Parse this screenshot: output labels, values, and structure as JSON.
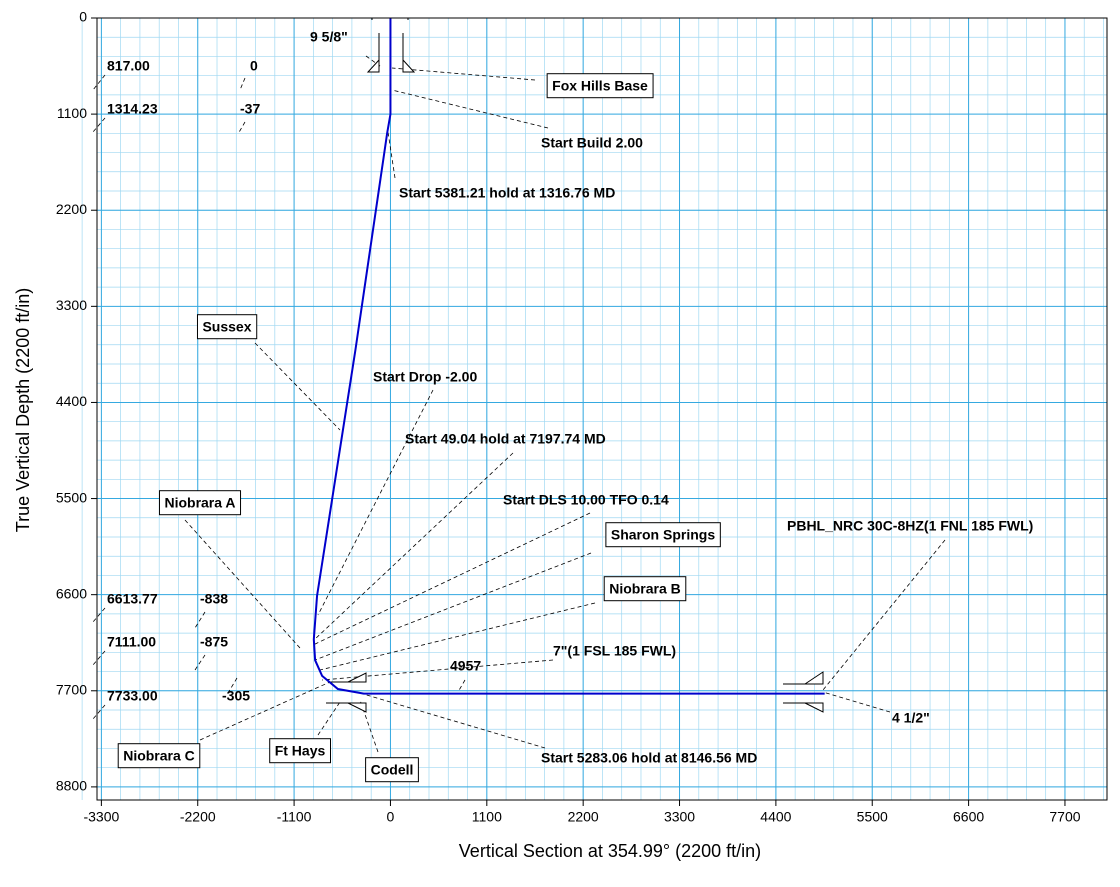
{
  "chart_data": {
    "type": "line",
    "x_label": "Vertical Section at 354.99° (2200 ft/in)",
    "y_label": "True Vertical Depth (2200 ft/in)",
    "xlim": [
      -3350,
      8180
    ],
    "ylim": [
      0,
      8950
    ],
    "y_inverted": true,
    "xticks": [
      -3300,
      -2200,
      -1100,
      0,
      1100,
      2200,
      3300,
      4400,
      5500,
      6600,
      7700
    ],
    "yticks": [
      0,
      1100,
      2200,
      3300,
      4400,
      5500,
      6600,
      7700,
      8800
    ],
    "grid": true,
    "series": [
      {
        "color": "#0000cc",
        "x": [
          0,
          0,
          0,
          -37,
          -400,
          -838,
          -875,
          -860,
          -780,
          -600,
          -305,
          4957
        ],
        "values": [
          0,
          817,
          1100,
          1314.23,
          3800,
          6613.77,
          7111,
          7350,
          7530,
          7680,
          7733,
          7733
        ]
      }
    ],
    "point_labels": [
      {
        "tvd": "817.00",
        "vs": "0"
      },
      {
        "tvd": "1314.23",
        "vs": "-37"
      },
      {
        "tvd": "6613.77",
        "vs": "-838"
      },
      {
        "tvd": "7111.00",
        "vs": "-875"
      },
      {
        "tvd": "7733.00",
        "vs": "-305"
      }
    ],
    "annotations": [
      {
        "text": "9 5/8\"",
        "boxed": false
      },
      {
        "text": "Fox Hills Base",
        "boxed": true
      },
      {
        "text": "Start Build 2.00",
        "boxed": false
      },
      {
        "text": "Start 5381.21 hold at 1316.76 MD",
        "boxed": false
      },
      {
        "text": "Sussex",
        "boxed": true
      },
      {
        "text": "Start Drop -2.00",
        "boxed": false
      },
      {
        "text": "Start 49.04 hold at 7197.74 MD",
        "boxed": false
      },
      {
        "text": "Start DLS 10.00 TFO 0.14",
        "boxed": false
      },
      {
        "text": "Sharon Springs",
        "boxed": true
      },
      {
        "text": "Niobrara A",
        "boxed": true
      },
      {
        "text": "Niobrara B",
        "boxed": true
      },
      {
        "text": "7\"(1 FSL 185 FWL)",
        "boxed": false
      },
      {
        "text": "4957",
        "boxed": false
      },
      {
        "text": "Niobrara C",
        "boxed": true
      },
      {
        "text": "Ft Hays",
        "boxed": true
      },
      {
        "text": "Codell",
        "boxed": true
      },
      {
        "text": "Start 5283.06 hold at 8146.56 MD",
        "boxed": false
      },
      {
        "text": "PBHL_NRC 30C-8HZ(1 FNL 185 FWL)",
        "boxed": false
      },
      {
        "text": "4 1/2\"",
        "boxed": false
      }
    ]
  }
}
